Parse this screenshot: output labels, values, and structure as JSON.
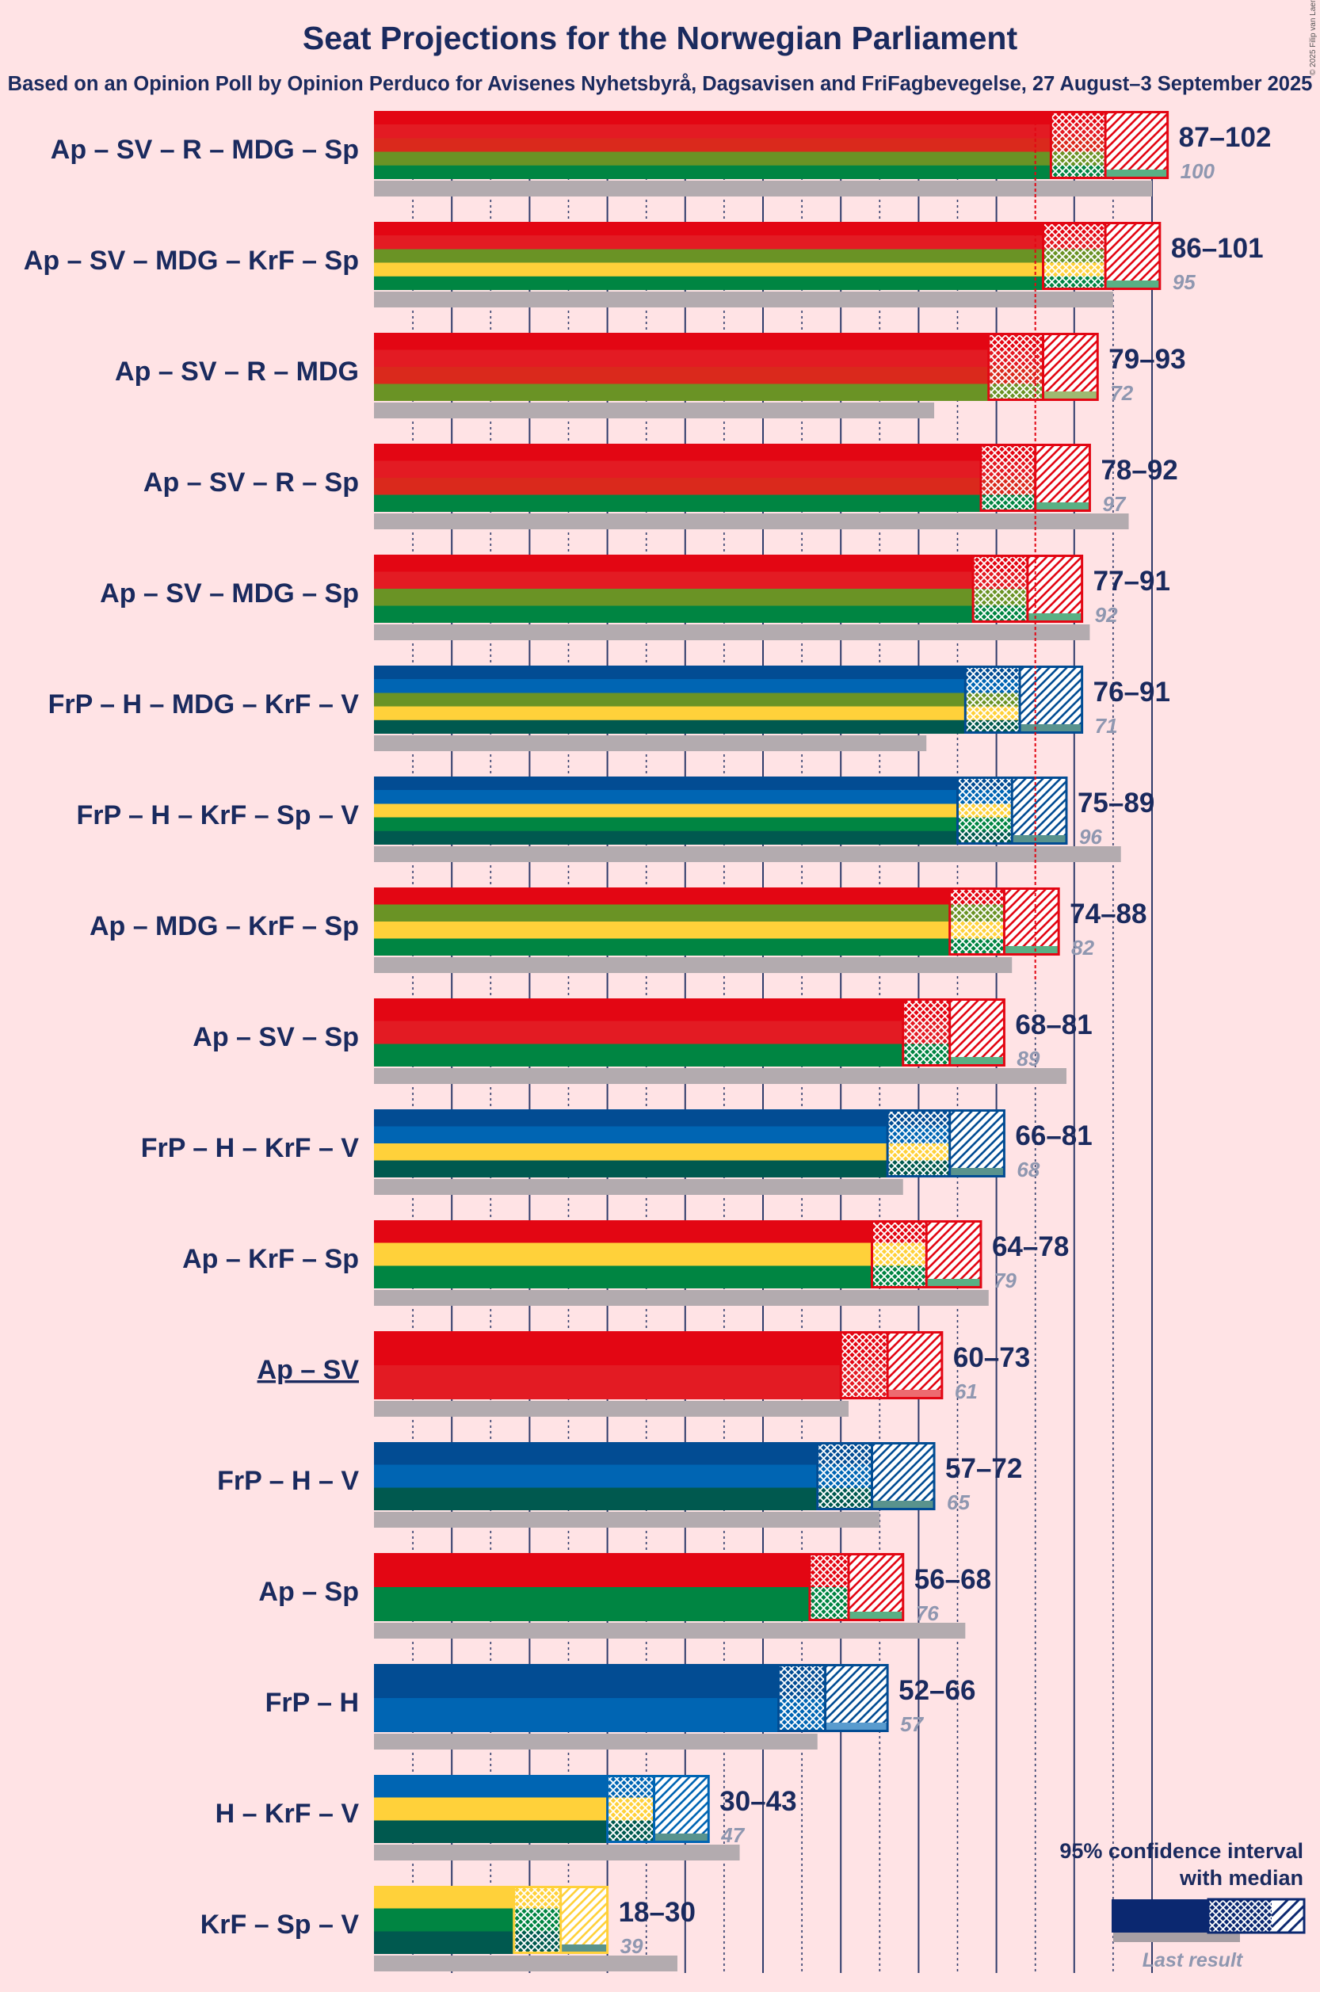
{
  "title": "Seat Projections for the Norwegian Parliament",
  "subtitle": "Based on an Opinion Poll by Opinion Perduco for Avisenes Nyhetsbyrå, Dagsavisen and FriFagbevegelse, 27 August–3 September 2025",
  "credit": "© 2025 Filip van Laenen",
  "legend": {
    "line1": "95% confidence interval",
    "line2": "with median",
    "last_result": "Last result"
  },
  "chart_data": {
    "type": "bar",
    "orientation": "horizontal",
    "majority": 85,
    "axis_max": 102,
    "party_colors": {
      "Ap": "#e30613",
      "SV": "#e31b23",
      "R": "#da291c",
      "MDG": "#6a9325",
      "Sp": "#008542",
      "KrF": "#ffd13a",
      "FrP": "#024c93",
      "H": "#0065b3",
      "V": "#00594f"
    },
    "coalitions": [
      {
        "label": "Ap – SV – R – MDG – Sp",
        "parties": [
          "Ap",
          "SV",
          "R",
          "MDG",
          "Sp"
        ],
        "low": 87,
        "median": 94,
        "high": 102,
        "range_text": "87–102",
        "last_result": 100,
        "last_text": "100",
        "underlined": false
      },
      {
        "label": "Ap – SV – MDG – KrF – Sp",
        "parties": [
          "Ap",
          "SV",
          "MDG",
          "KrF",
          "Sp"
        ],
        "low": 86,
        "median": 94,
        "high": 101,
        "range_text": "86–101",
        "last_result": 95,
        "last_text": "95",
        "underlined": false
      },
      {
        "label": "Ap – SV – R – MDG",
        "parties": [
          "Ap",
          "SV",
          "R",
          "MDG"
        ],
        "low": 79,
        "median": 86,
        "high": 93,
        "range_text": "79–93",
        "last_result": 72,
        "last_text": "72",
        "underlined": false
      },
      {
        "label": "Ap – SV – R – Sp",
        "parties": [
          "Ap",
          "SV",
          "R",
          "Sp"
        ],
        "low": 78,
        "median": 85,
        "high": 92,
        "range_text": "78–92",
        "last_result": 97,
        "last_text": "97",
        "underlined": false
      },
      {
        "label": "Ap – SV – MDG – Sp",
        "parties": [
          "Ap",
          "SV",
          "MDG",
          "Sp"
        ],
        "low": 77,
        "median": 84,
        "high": 91,
        "range_text": "77–91",
        "last_result": 92,
        "last_text": "92",
        "underlined": false
      },
      {
        "label": "FrP – H – MDG – KrF – V",
        "parties": [
          "FrP",
          "H",
          "MDG",
          "KrF",
          "V"
        ],
        "low": 76,
        "median": 83,
        "high": 91,
        "range_text": "76–91",
        "last_result": 71,
        "last_text": "71",
        "underlined": false
      },
      {
        "label": "FrP – H – KrF – Sp – V",
        "parties": [
          "FrP",
          "H",
          "KrF",
          "Sp",
          "V"
        ],
        "low": 75,
        "median": 82,
        "high": 89,
        "range_text": "75–89",
        "last_result": 96,
        "last_text": "96",
        "underlined": false
      },
      {
        "label": "Ap – MDG – KrF – Sp",
        "parties": [
          "Ap",
          "MDG",
          "KrF",
          "Sp"
        ],
        "low": 74,
        "median": 81,
        "high": 88,
        "range_text": "74–88",
        "last_result": 82,
        "last_text": "82",
        "underlined": false
      },
      {
        "label": "Ap – SV – Sp",
        "parties": [
          "Ap",
          "SV",
          "Sp"
        ],
        "low": 68,
        "median": 74,
        "high": 81,
        "range_text": "68–81",
        "last_result": 89,
        "last_text": "89",
        "underlined": false
      },
      {
        "label": "FrP – H – KrF – V",
        "parties": [
          "FrP",
          "H",
          "KrF",
          "V"
        ],
        "low": 66,
        "median": 74,
        "high": 81,
        "range_text": "66–81",
        "last_result": 68,
        "last_text": "68",
        "underlined": false
      },
      {
        "label": "Ap – KrF – Sp",
        "parties": [
          "Ap",
          "KrF",
          "Sp"
        ],
        "low": 64,
        "median": 71,
        "high": 78,
        "range_text": "64–78",
        "last_result": 79,
        "last_text": "79",
        "underlined": false
      },
      {
        "label": "Ap – SV",
        "parties": [
          "Ap",
          "SV"
        ],
        "low": 60,
        "median": 66,
        "high": 73,
        "range_text": "60–73",
        "last_result": 61,
        "last_text": "61",
        "underlined": true
      },
      {
        "label": "FrP – H – V",
        "parties": [
          "FrP",
          "H",
          "V"
        ],
        "low": 57,
        "median": 64,
        "high": 72,
        "range_text": "57–72",
        "last_result": 65,
        "last_text": "65",
        "underlined": false
      },
      {
        "label": "Ap – Sp",
        "parties": [
          "Ap",
          "Sp"
        ],
        "low": 56,
        "median": 61,
        "high": 68,
        "range_text": "56–68",
        "last_result": 76,
        "last_text": "76",
        "underlined": false
      },
      {
        "label": "FrP – H",
        "parties": [
          "FrP",
          "H"
        ],
        "low": 52,
        "median": 58,
        "high": 66,
        "range_text": "52–66",
        "last_result": 57,
        "last_text": "57",
        "underlined": false
      },
      {
        "label": "H – KrF – V",
        "parties": [
          "H",
          "KrF",
          "V"
        ],
        "low": 30,
        "median": 36,
        "high": 43,
        "range_text": "30–43",
        "last_result": 47,
        "last_text": "47",
        "underlined": false
      },
      {
        "label": "KrF – Sp – V",
        "parties": [
          "KrF",
          "Sp",
          "V"
        ],
        "low": 18,
        "median": 24,
        "high": 30,
        "range_text": "18–30",
        "last_result": 39,
        "last_text": "39",
        "underlined": false
      }
    ]
  }
}
